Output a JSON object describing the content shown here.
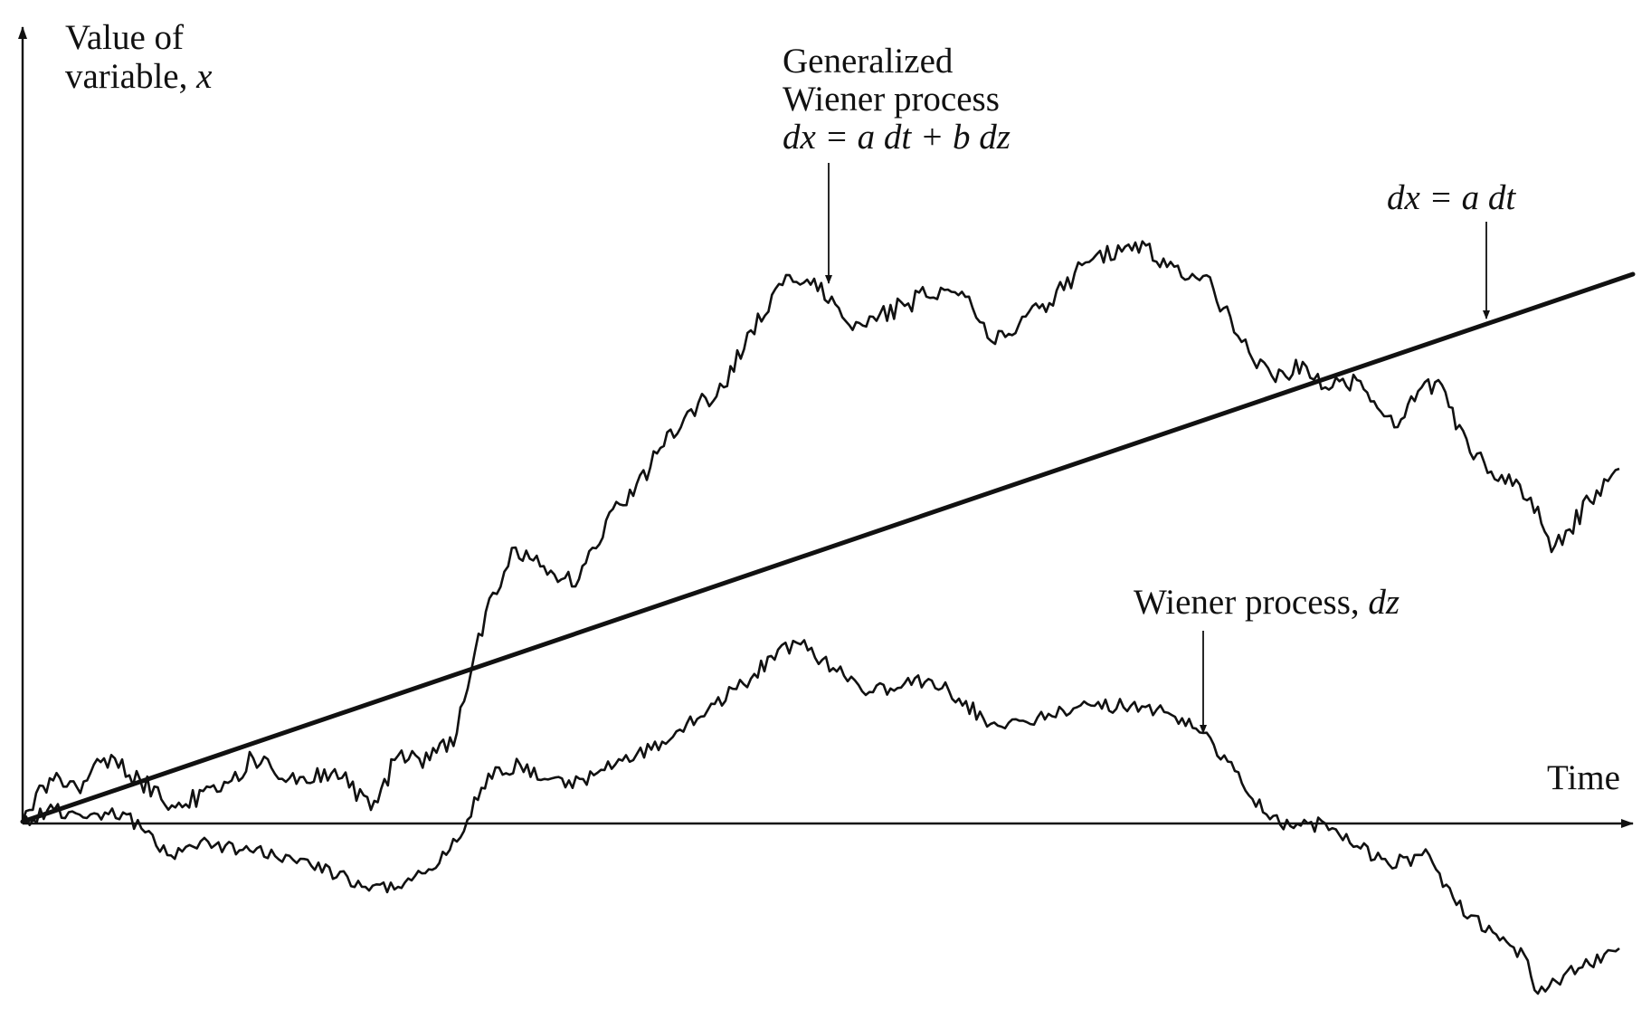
{
  "axes": {
    "y_label_line1": "Value of",
    "y_label_line2_text": "variable, ",
    "y_label_line2_var": "x",
    "x_label": "Time"
  },
  "labels": {
    "generalized_line1": "Generalized",
    "generalized_line2": "Wiener process",
    "generalized_eq": "dx = a dt + b dz",
    "drift_eq": "dx = a dt",
    "wiener_text": "Wiener process, ",
    "wiener_var": "dz"
  },
  "colors": {
    "ink": "#111111",
    "background": "#ffffff"
  }
}
